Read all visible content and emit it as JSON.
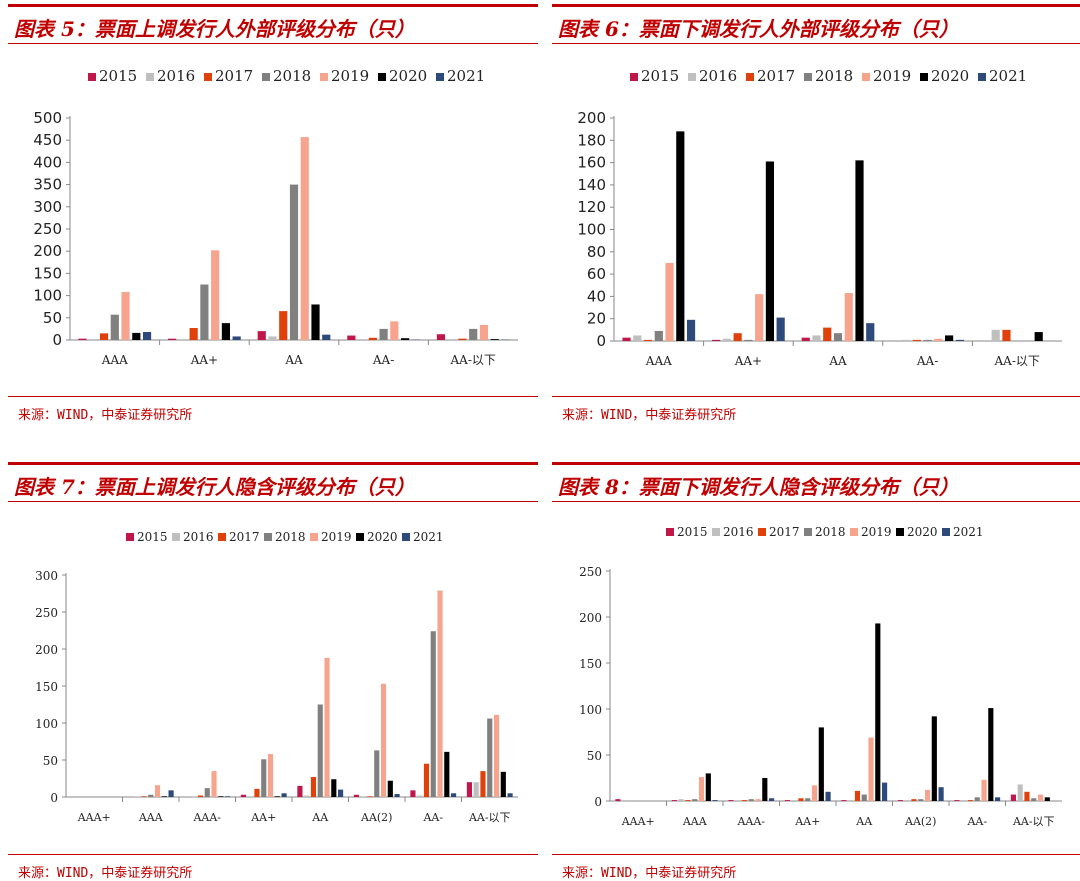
{
  "source_text": "来源：WIND，中泰证券研究所",
  "series_colors": {
    "2015": "#c0174b",
    "2016": "#bfbfbf",
    "2017": "#e0400a",
    "2018": "#808080",
    "2019": "#f7a48f",
    "2020": "#000000",
    "2021": "#2e4a7a"
  },
  "panels": [
    {
      "title": "图表 5：票面上调发行人外部评级分布（只）"
    },
    {
      "title": "图表 6：票面下调发行人外部评级分布（只）"
    },
    {
      "title": "图表 7：票面上调发行人隐含评级分布（只）"
    },
    {
      "title": "图表 8：票面下调发行人隐含评级分布（只）"
    }
  ],
  "chart_data": [
    {
      "type": "bar",
      "title": "图表 5：票面上调发行人外部评级分布（只）",
      "categories": [
        "AAA",
        "AA+",
        "AA",
        "AA-",
        "AA-以下"
      ],
      "ylim": [
        0,
        500
      ],
      "yticks": [
        0,
        50,
        100,
        150,
        200,
        250,
        300,
        350,
        400,
        450,
        500
      ],
      "grid": false,
      "legend": "top",
      "series": [
        {
          "name": "2015",
          "values": [
            3,
            3,
            20,
            10,
            13
          ]
        },
        {
          "name": "2016",
          "values": [
            2,
            2,
            8,
            2,
            2
          ]
        },
        {
          "name": "2017",
          "values": [
            15,
            27,
            65,
            5,
            3
          ]
        },
        {
          "name": "2018",
          "values": [
            57,
            125,
            350,
            25,
            25
          ]
        },
        {
          "name": "2019",
          "values": [
            108,
            202,
            457,
            42,
            34
          ]
        },
        {
          "name": "2020",
          "values": [
            16,
            38,
            80,
            4,
            2
          ]
        },
        {
          "name": "2021",
          "values": [
            18,
            8,
            12,
            1,
            1
          ]
        }
      ]
    },
    {
      "type": "bar",
      "title": "图表 6：票面下调发行人外部评级分布（只）",
      "categories": [
        "AAA",
        "AA+",
        "AA",
        "AA-",
        "AA-以下"
      ],
      "ylim": [
        0,
        200
      ],
      "yticks": [
        0,
        20,
        40,
        60,
        80,
        100,
        120,
        140,
        160,
        180,
        200
      ],
      "grid": false,
      "legend": "top",
      "series": [
        {
          "name": "2015",
          "values": [
            3,
            1,
            3,
            0,
            0
          ]
        },
        {
          "name": "2016",
          "values": [
            5,
            2,
            5,
            1,
            10
          ]
        },
        {
          "name": "2017",
          "values": [
            1,
            7,
            12,
            1,
            10
          ]
        },
        {
          "name": "2018",
          "values": [
            9,
            1,
            7,
            1,
            0
          ]
        },
        {
          "name": "2019",
          "values": [
            70,
            42,
            43,
            2,
            0
          ]
        },
        {
          "name": "2020",
          "values": [
            188,
            161,
            162,
            5,
            8
          ]
        },
        {
          "name": "2021",
          "values": [
            19,
            21,
            16,
            1,
            0
          ]
        }
      ]
    },
    {
      "type": "bar",
      "title": "图表 7：票面上调发行人隐含评级分布（只）",
      "categories": [
        "AAA+",
        "AAA",
        "AAA-",
        "AA+",
        "AA",
        "AA(2)",
        "AA-",
        "AA-以下"
      ],
      "ylim": [
        0,
        300
      ],
      "yticks": [
        0,
        50,
        100,
        150,
        200,
        250,
        300
      ],
      "grid": false,
      "legend": "top",
      "series": [
        {
          "name": "2015",
          "values": [
            0,
            0,
            0,
            3,
            15,
            3,
            9,
            20
          ]
        },
        {
          "name": "2016",
          "values": [
            0,
            1,
            1,
            1,
            2,
            1,
            2,
            20
          ]
        },
        {
          "name": "2017",
          "values": [
            0,
            1,
            2,
            11,
            27,
            1,
            45,
            35
          ]
        },
        {
          "name": "2018",
          "values": [
            0,
            3,
            12,
            51,
            125,
            63,
            224,
            106
          ]
        },
        {
          "name": "2019",
          "values": [
            0,
            16,
            35,
            58,
            188,
            153,
            279,
            111
          ]
        },
        {
          "name": "2020",
          "values": [
            0,
            1,
            1,
            1,
            24,
            22,
            61,
            34
          ]
        },
        {
          "name": "2021",
          "values": [
            0,
            9,
            1,
            5,
            10,
            4,
            5,
            5
          ]
        }
      ]
    },
    {
      "type": "bar",
      "title": "图表 8：票面下调发行人隐含评级分布（只）",
      "categories": [
        "AAA+",
        "AAA",
        "AAA-",
        "AA+",
        "AA",
        "AA(2)",
        "AA-",
        "AA-以下"
      ],
      "ylim": [
        0,
        250
      ],
      "yticks": [
        0,
        50,
        100,
        150,
        200,
        250
      ],
      "grid": false,
      "legend": "top",
      "series": [
        {
          "name": "2015",
          "values": [
            2,
            1,
            1,
            1,
            1,
            1,
            1,
            7
          ]
        },
        {
          "name": "2016",
          "values": [
            0,
            2,
            1,
            1,
            1,
            1,
            1,
            18
          ]
        },
        {
          "name": "2017",
          "values": [
            0,
            1,
            1,
            3,
            11,
            2,
            1,
            10
          ]
        },
        {
          "name": "2018",
          "values": [
            0,
            2,
            2,
            3,
            7,
            2,
            4,
            3
          ]
        },
        {
          "name": "2019",
          "values": [
            0,
            26,
            2,
            17,
            69,
            12,
            23,
            7
          ]
        },
        {
          "name": "2020",
          "values": [
            0,
            30,
            25,
            80,
            193,
            92,
            101,
            4
          ]
        },
        {
          "name": "2021",
          "values": [
            0,
            1,
            3,
            10,
            20,
            15,
            4,
            0
          ]
        }
      ]
    }
  ]
}
